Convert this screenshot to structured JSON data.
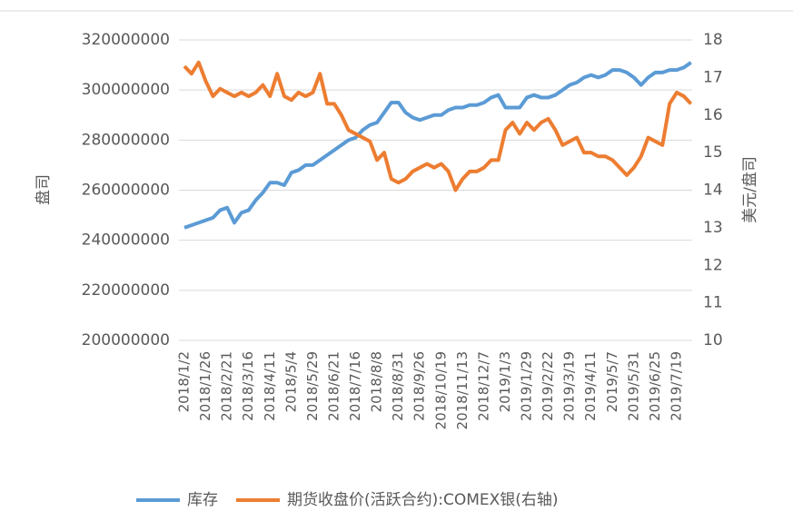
{
  "chart_data": {
    "type": "line",
    "y_label": "盘司",
    "y2_label": "美元/盘司",
    "categories": [
      "2018/1/2",
      null,
      null,
      "2018/1/26",
      null,
      null,
      "2018/2/21",
      null,
      null,
      "2018/3/16",
      null,
      null,
      "2018/4/11",
      null,
      null,
      "2018/5/4",
      null,
      null,
      "2018/5/29",
      null,
      null,
      "2018/6/21",
      null,
      null,
      "2018/7/16",
      null,
      null,
      "2018/8/8",
      null,
      null,
      "2018/8/31",
      null,
      null,
      "2018/9/26",
      null,
      null,
      "2018/10/19",
      null,
      null,
      "2018/11/13",
      null,
      null,
      "2018/12/7",
      null,
      null,
      "2019/1/3",
      null,
      null,
      "2019/1/29",
      null,
      null,
      "2019/2/22",
      null,
      null,
      "2019/3/19",
      null,
      null,
      "2019/4/11",
      null,
      null,
      "2019/5/7",
      null,
      null,
      "2019/5/31",
      null,
      null,
      "2019/6/25",
      null,
      null,
      "2019/7/19",
      null,
      null
    ],
    "series": [
      {
        "name": "库存",
        "color": "#5b9bd5",
        "axis": "y",
        "values": [
          245000000,
          246000000,
          247000000,
          248000000,
          249000000,
          252000000,
          253000000,
          247000000,
          251000000,
          252000000,
          256000000,
          259000000,
          263000000,
          263000000,
          262000000,
          267000000,
          268000000,
          270000000,
          270000000,
          272000000,
          274000000,
          276000000,
          278000000,
          280000000,
          281000000,
          284000000,
          286000000,
          287000000,
          291000000,
          295000000,
          295000000,
          291000000,
          289000000,
          288000000,
          289000000,
          290000000,
          290000000,
          292000000,
          293000000,
          293000000,
          294000000,
          294000000,
          295000000,
          297000000,
          298000000,
          293000000,
          293000000,
          293000000,
          297000000,
          298000000,
          297000000,
          297000000,
          298000000,
          300000000,
          302000000,
          303000000,
          305000000,
          306000000,
          305000000,
          306000000,
          308000000,
          308000000,
          307000000,
          305000000,
          302000000,
          305000000,
          307000000,
          307000000,
          308000000,
          308000000,
          309000000,
          311000000
        ]
      },
      {
        "name": "期货收盘价(活跃合约):COMEX银(右轴)",
        "color": "#ed7d31",
        "axis": "y2",
        "values": [
          17.3,
          17.1,
          17.4,
          16.9,
          16.5,
          16.7,
          16.6,
          16.5,
          16.6,
          16.5,
          16.6,
          16.8,
          16.5,
          17.1,
          16.5,
          16.4,
          16.6,
          16.5,
          16.6,
          17.1,
          16.3,
          16.3,
          16.0,
          15.6,
          15.5,
          15.4,
          15.3,
          14.8,
          15.0,
          14.3,
          14.2,
          14.3,
          14.5,
          14.6,
          14.7,
          14.6,
          14.7,
          14.5,
          14.0,
          14.3,
          14.5,
          14.5,
          14.6,
          14.8,
          14.8,
          15.6,
          15.8,
          15.5,
          15.8,
          15.6,
          15.8,
          15.9,
          15.6,
          15.2,
          15.3,
          15.4,
          15.0,
          15.0,
          14.9,
          14.9,
          14.8,
          14.6,
          14.4,
          14.6,
          14.9,
          15.4,
          15.3,
          15.2,
          16.3,
          16.6,
          16.5,
          16.3
        ]
      }
    ],
    "ylim": [
      200000000,
      320000000
    ],
    "yticks": [
      200000000,
      220000000,
      240000000,
      260000000,
      280000000,
      300000000,
      320000000
    ],
    "y2lim": [
      10,
      18
    ],
    "y2ticks": [
      10,
      11,
      12,
      13,
      14,
      15,
      16,
      17,
      18
    ],
    "grid": true,
    "legend": "bottom"
  }
}
